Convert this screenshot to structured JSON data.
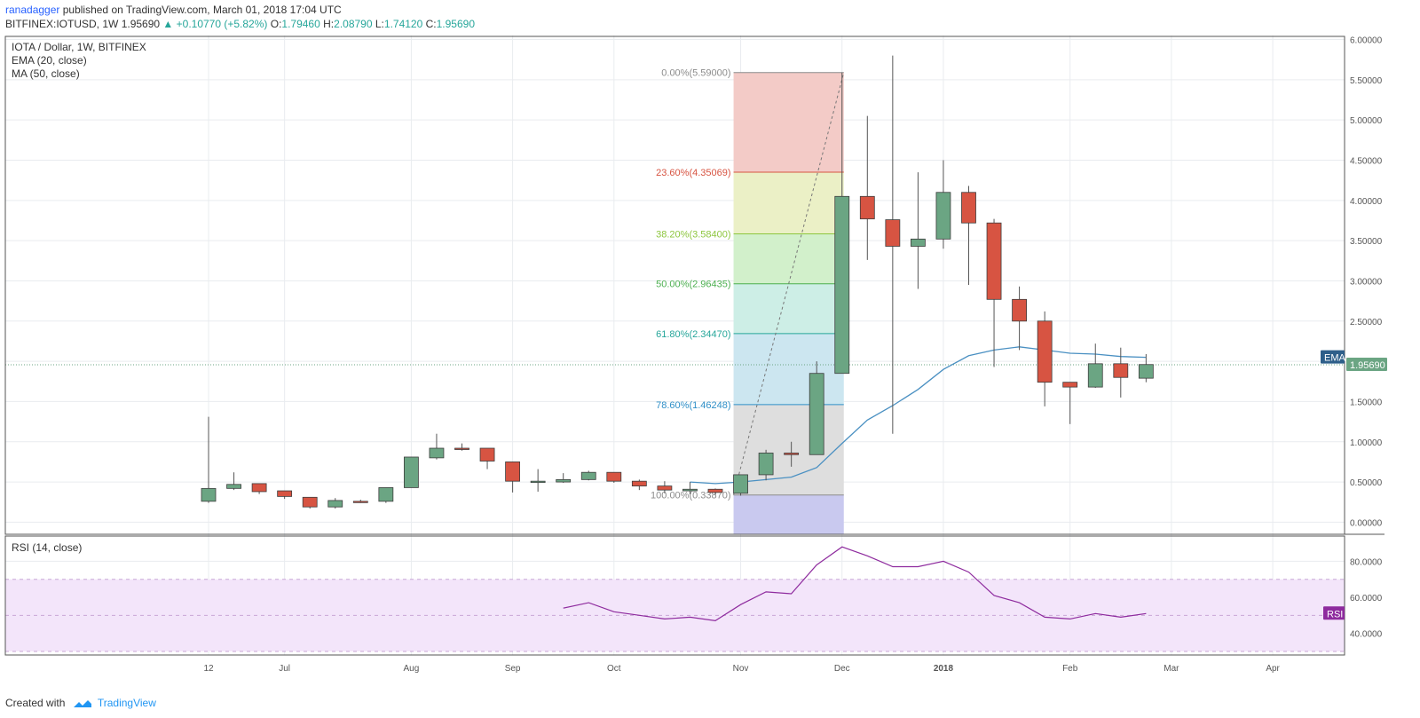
{
  "header": {
    "author": "ranadagger",
    "published": "published on TradingView.com, March 01, 2018 17:04 UTC",
    "symbol": "BITFINEX:IOTUSD, 1W",
    "last": "1.95690",
    "change": "▲ +0.10770 (+5.82%)",
    "o_label": "O:",
    "o": "1.79460",
    "h_label": "H:",
    "h": "2.08790",
    "l_label": "L:",
    "l": "1.74120",
    "c_label": "C:",
    "c": "1.95690"
  },
  "legend": {
    "title": "IOTA / Dollar, 1W, BITFINEX",
    "ema": "EMA (20, close)",
    "ma": "MA (50, close)",
    "rsi": "RSI (14, close)"
  },
  "badges": {
    "ema": "EMA",
    "price": "1.95690",
    "rsi": "RSI"
  },
  "footer": {
    "created": "Created with",
    "brand": "TradingView"
  },
  "colors": {
    "up": "#6ba583",
    "down": "#d75442",
    "ema": "#4a90c2",
    "rsi": "#8e2b9e",
    "rsi_band": "#f3e5fa",
    "grid": "#e9ecef",
    "border": "#555555",
    "price_badge": "#6ba583"
  },
  "chart_data": [
    {
      "type": "candlestick",
      "title": "IOTA / Dollar, 1W, BITFINEX",
      "ylim": [
        -0.15,
        6.05
      ],
      "y_ticks": [
        "0.00000",
        "0.50000",
        "1.00000",
        "1.50000",
        "2.00000",
        "2.50000",
        "3.00000",
        "3.50000",
        "4.00000",
        "4.50000",
        "5.00000",
        "5.50000",
        "6.00000"
      ],
      "x_ticks": [
        {
          "label": "12",
          "w": 0
        },
        {
          "label": "Jul",
          "w": 3
        },
        {
          "label": "Aug",
          "w": 8
        },
        {
          "label": "Sep",
          "w": 12
        },
        {
          "label": "Oct",
          "w": 16
        },
        {
          "label": "Nov",
          "w": 21
        },
        {
          "label": "Dec",
          "w": 25
        },
        {
          "label": "2018",
          "w": 29
        },
        {
          "label": "Feb",
          "w": 34
        },
        {
          "label": "Mar",
          "w": 38
        },
        {
          "label": "Apr",
          "w": 42
        }
      ],
      "candles": [
        {
          "o": 0.26,
          "h": 1.31,
          "l": 0.24,
          "c": 0.42
        },
        {
          "o": 0.42,
          "h": 0.62,
          "l": 0.4,
          "c": 0.47
        },
        {
          "o": 0.48,
          "h": 0.48,
          "l": 0.35,
          "c": 0.38
        },
        {
          "o": 0.39,
          "h": 0.39,
          "l": 0.29,
          "c": 0.32
        },
        {
          "o": 0.31,
          "h": 0.31,
          "l": 0.17,
          "c": 0.19
        },
        {
          "o": 0.19,
          "h": 0.3,
          "l": 0.17,
          "c": 0.27
        },
        {
          "o": 0.26,
          "h": 0.28,
          "l": 0.24,
          "c": 0.25
        },
        {
          "o": 0.26,
          "h": 0.43,
          "l": 0.24,
          "c": 0.43
        },
        {
          "o": 0.43,
          "h": 0.81,
          "l": 0.43,
          "c": 0.81
        },
        {
          "o": 0.8,
          "h": 1.1,
          "l": 0.78,
          "c": 0.92
        },
        {
          "o": 0.92,
          "h": 0.98,
          "l": 0.89,
          "c": 0.91
        },
        {
          "o": 0.92,
          "h": 0.92,
          "l": 0.66,
          "c": 0.76
        },
        {
          "o": 0.75,
          "h": 0.75,
          "l": 0.37,
          "c": 0.51
        },
        {
          "o": 0.51,
          "h": 0.66,
          "l": 0.38,
          "c": 0.51
        },
        {
          "o": 0.5,
          "h": 0.61,
          "l": 0.49,
          "c": 0.53
        },
        {
          "o": 0.53,
          "h": 0.64,
          "l": 0.52,
          "c": 0.62
        },
        {
          "o": 0.62,
          "h": 0.62,
          "l": 0.49,
          "c": 0.51
        },
        {
          "o": 0.51,
          "h": 0.53,
          "l": 0.4,
          "c": 0.45
        },
        {
          "o": 0.45,
          "h": 0.51,
          "l": 0.36,
          "c": 0.4
        },
        {
          "o": 0.39,
          "h": 0.5,
          "l": 0.35,
          "c": 0.41
        },
        {
          "o": 0.41,
          "h": 0.42,
          "l": 0.34,
          "c": 0.37
        },
        {
          "o": 0.36,
          "h": 0.59,
          "l": 0.33,
          "c": 0.59
        },
        {
          "o": 0.59,
          "h": 0.9,
          "l": 0.52,
          "c": 0.86
        },
        {
          "o": 0.86,
          "h": 1.0,
          "l": 0.69,
          "c": 0.84
        },
        {
          "o": 0.84,
          "h": 2.0,
          "l": 0.84,
          "c": 1.85
        },
        {
          "o": 1.85,
          "h": 5.59,
          "l": 1.85,
          "c": 4.05
        },
        {
          "o": 4.05,
          "h": 5.05,
          "l": 3.26,
          "c": 3.77
        },
        {
          "o": 3.76,
          "h": 5.8,
          "l": 1.1,
          "c": 3.43
        },
        {
          "o": 3.43,
          "h": 4.35,
          "l": 2.9,
          "c": 3.52
        },
        {
          "o": 3.52,
          "h": 4.5,
          "l": 3.4,
          "c": 4.1
        },
        {
          "o": 4.1,
          "h": 4.18,
          "l": 2.95,
          "c": 3.72
        },
        {
          "o": 3.72,
          "h": 3.77,
          "l": 1.93,
          "c": 2.77
        },
        {
          "o": 2.77,
          "h": 2.93,
          "l": 2.14,
          "c": 2.5
        },
        {
          "o": 2.5,
          "h": 2.62,
          "l": 1.44,
          "c": 1.74
        },
        {
          "o": 1.74,
          "h": 1.74,
          "l": 1.22,
          "c": 1.68
        },
        {
          "o": 1.68,
          "h": 2.22,
          "l": 1.67,
          "c": 1.97
        },
        {
          "o": 1.97,
          "h": 2.17,
          "l": 1.55,
          "c": 1.8
        },
        {
          "o": 1.79,
          "h": 2.09,
          "l": 1.74,
          "c": 1.96
        }
      ],
      "ema": {
        "w": [
          19,
          20,
          21,
          22,
          23,
          24,
          25,
          26,
          27,
          28,
          29,
          30,
          31,
          32,
          33,
          34,
          35,
          36,
          37
        ],
        "v": [
          0.5,
          0.48,
          0.5,
          0.53,
          0.56,
          0.68,
          0.98,
          1.27,
          1.45,
          1.65,
          1.9,
          2.07,
          2.14,
          2.18,
          2.14,
          2.1,
          2.09,
          2.06,
          2.05
        ]
      },
      "fib": [
        {
          "label": "0.00%(5.59000)",
          "v": 5.59,
          "color": "#8c8c8c"
        },
        {
          "label": "23.60%(4.35069)",
          "v": 4.35069,
          "color": "#d75442"
        },
        {
          "label": "38.20%(3.58400)",
          "v": 3.584,
          "color": "#8dc63f"
        },
        {
          "label": "50.00%(2.96435)",
          "v": 2.96435,
          "color": "#4caf50"
        },
        {
          "label": "61.80%(2.34470)",
          "v": 2.3447,
          "color": "#26a69a"
        },
        {
          "label": "78.60%(1.46248)",
          "v": 1.46248,
          "color": "#2f8fc7"
        },
        {
          "label": "100.00%(0.33870)",
          "v": 0.3387,
          "color": "#8c8c8c"
        }
      ],
      "last_price": 1.9569
    },
    {
      "type": "line",
      "title": "RSI (14, close)",
      "ylim": [
        28,
        94
      ],
      "y_ticks": [
        "40.0000",
        "60.0000",
        "80.0000"
      ],
      "band": [
        30,
        70
      ],
      "series": [
        {
          "w": [
            14,
            15,
            16,
            17,
            18,
            19,
            20,
            21,
            22,
            23,
            24,
            25,
            26,
            27,
            28,
            29,
            30,
            31,
            32,
            33,
            34,
            35,
            36,
            37
          ],
          "v": [
            54,
            57,
            52,
            50,
            48,
            49,
            47,
            56,
            63,
            62,
            78,
            88,
            83,
            77,
            77,
            80,
            74,
            61,
            57,
            49,
            48,
            51,
            49,
            51
          ]
        }
      ]
    }
  ]
}
